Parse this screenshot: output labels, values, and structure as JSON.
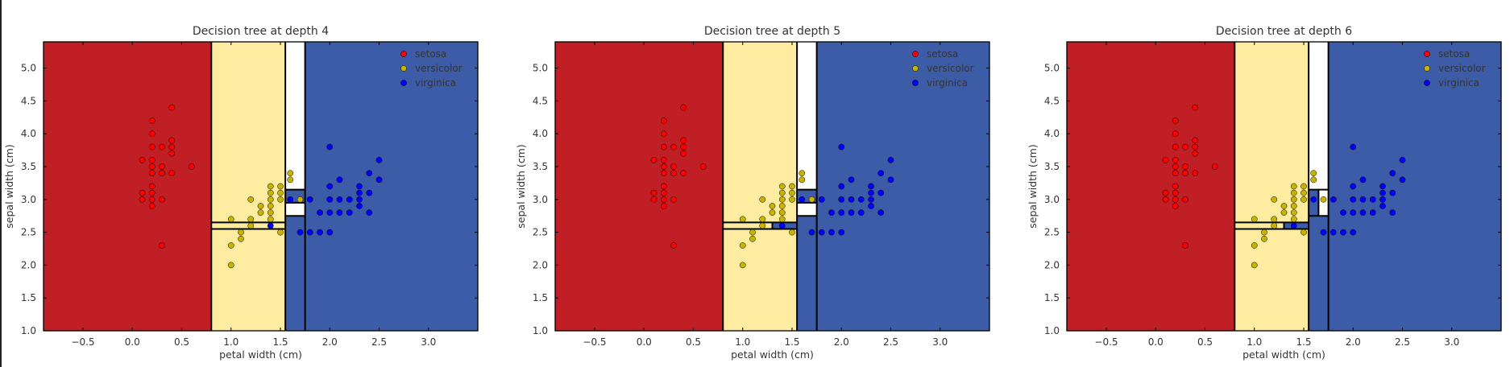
{
  "chart_data": [
    {
      "type": "scatter",
      "title": "Decision tree at depth 4",
      "xlabel": "petal width (cm)",
      "ylabel": "sepal width (cm)",
      "xlim": [
        -0.9,
        3.5
      ],
      "ylim": [
        1.0,
        5.4
      ],
      "xticks": [
        "−0.5",
        "0.0",
        "0.5",
        "1.0",
        "1.5",
        "2.0",
        "2.5",
        "3.0"
      ],
      "xtick_values": [
        -0.5,
        0.0,
        0.5,
        1.0,
        1.5,
        2.0,
        2.5,
        3.0
      ],
      "yticks": [
        "1.0",
        "1.5",
        "2.0",
        "2.5",
        "3.0",
        "3.5",
        "4.0",
        "4.5",
        "5.0"
      ],
      "ytick_values": [
        1.0,
        1.5,
        2.0,
        2.5,
        3.0,
        3.5,
        4.0,
        4.5,
        5.0
      ],
      "grid": false,
      "legend": "top-right",
      "regions": [
        {
          "class": "setosa",
          "x": [
            -0.9,
            0.8
          ],
          "y": [
            1.0,
            5.4
          ]
        },
        {
          "class": "versicolor",
          "x": [
            0.8,
            1.55
          ],
          "y": [
            1.0,
            5.4
          ]
        },
        {
          "class": "virginica",
          "x": [
            1.55,
            1.75
          ],
          "y": [
            1.0,
            2.75
          ]
        },
        {
          "class": "virginica",
          "x": [
            1.55,
            1.75
          ],
          "y": [
            2.95,
            3.15
          ]
        },
        {
          "class": "virginica",
          "x": [
            1.75,
            3.5
          ],
          "y": [
            1.0,
            5.4
          ]
        }
      ],
      "vlines": [
        {
          "x": 0.8,
          "y": [
            1.0,
            5.4
          ]
        },
        {
          "x": 1.55,
          "y": [
            1.0,
            5.4
          ]
        },
        {
          "x": 1.75,
          "y": [
            1.0,
            5.4
          ]
        }
      ],
      "hlines": [
        {
          "y": 2.55,
          "x": [
            0.8,
            1.55
          ]
        },
        {
          "y": 2.65,
          "x": [
            0.8,
            1.55
          ]
        },
        {
          "y": 2.75,
          "x": [
            1.55,
            1.75
          ]
        },
        {
          "y": 2.95,
          "x": [
            1.55,
            1.75
          ]
        },
        {
          "y": 3.15,
          "x": [
            1.55,
            1.75
          ]
        }
      ]
    },
    {
      "type": "scatter",
      "title": "Decision tree at depth 5",
      "xlabel": "petal width (cm)",
      "ylabel": "sepal width (cm)",
      "xlim": [
        -0.9,
        3.5
      ],
      "ylim": [
        1.0,
        5.4
      ],
      "xticks": [
        "−0.5",
        "0.0",
        "0.5",
        "1.0",
        "1.5",
        "2.0",
        "2.5",
        "3.0"
      ],
      "xtick_values": [
        -0.5,
        0.0,
        0.5,
        1.0,
        1.5,
        2.0,
        2.5,
        3.0
      ],
      "yticks": [
        "1.0",
        "1.5",
        "2.0",
        "2.5",
        "3.0",
        "3.5",
        "4.0",
        "4.5",
        "5.0"
      ],
      "ytick_values": [
        1.0,
        1.5,
        2.0,
        2.5,
        3.0,
        3.5,
        4.0,
        4.5,
        5.0
      ],
      "grid": false,
      "legend": "top-right",
      "regions": [
        {
          "class": "setosa",
          "x": [
            -0.9,
            0.8
          ],
          "y": [
            1.0,
            5.4
          ]
        },
        {
          "class": "versicolor",
          "x": [
            0.8,
            1.55
          ],
          "y": [
            1.0,
            5.4
          ]
        },
        {
          "class": "virginica",
          "x": [
            1.3,
            1.55
          ],
          "y": [
            2.55,
            2.65
          ]
        },
        {
          "class": "virginica",
          "x": [
            1.55,
            1.75
          ],
          "y": [
            1.0,
            2.75
          ]
        },
        {
          "class": "virginica",
          "x": [
            1.55,
            1.75
          ],
          "y": [
            2.95,
            3.15
          ]
        },
        {
          "class": "virginica",
          "x": [
            1.75,
            3.5
          ],
          "y": [
            1.0,
            5.4
          ]
        }
      ],
      "vlines": [
        {
          "x": 0.8,
          "y": [
            1.0,
            5.4
          ]
        },
        {
          "x": 1.55,
          "y": [
            1.0,
            5.4
          ]
        },
        {
          "x": 1.75,
          "y": [
            1.0,
            5.4
          ]
        },
        {
          "x": 1.3,
          "y": [
            2.55,
            2.65
          ]
        }
      ],
      "hlines": [
        {
          "y": 2.55,
          "x": [
            0.8,
            1.55
          ]
        },
        {
          "y": 2.65,
          "x": [
            0.8,
            1.55
          ]
        },
        {
          "y": 2.75,
          "x": [
            1.55,
            1.75
          ]
        },
        {
          "y": 2.95,
          "x": [
            1.55,
            1.75
          ]
        },
        {
          "y": 3.15,
          "x": [
            1.55,
            1.75
          ]
        }
      ]
    },
    {
      "type": "scatter",
      "title": "Decision tree at depth 6",
      "xlabel": "petal width (cm)",
      "ylabel": "sepal width (cm)",
      "xlim": [
        -0.9,
        3.5
      ],
      "ylim": [
        1.0,
        5.4
      ],
      "xticks": [
        "−0.5",
        "0.0",
        "0.5",
        "1.0",
        "1.5",
        "2.0",
        "2.5",
        "3.0"
      ],
      "xtick_values": [
        -0.5,
        0.0,
        0.5,
        1.0,
        1.5,
        2.0,
        2.5,
        3.0
      ],
      "yticks": [
        "1.0",
        "1.5",
        "2.0",
        "2.5",
        "3.0",
        "3.5",
        "4.0",
        "4.5",
        "5.0"
      ],
      "ytick_values": [
        1.0,
        1.5,
        2.0,
        2.5,
        3.0,
        3.5,
        4.0,
        4.5,
        5.0
      ],
      "grid": false,
      "legend": "top-right",
      "regions": [
        {
          "class": "setosa",
          "x": [
            -0.9,
            0.8
          ],
          "y": [
            1.0,
            5.4
          ]
        },
        {
          "class": "versicolor",
          "x": [
            0.8,
            1.55
          ],
          "y": [
            1.0,
            5.4
          ]
        },
        {
          "class": "virginica",
          "x": [
            1.3,
            1.55
          ],
          "y": [
            2.55,
            2.65
          ]
        },
        {
          "class": "virginica",
          "x": [
            1.55,
            1.75
          ],
          "y": [
            1.0,
            2.75
          ]
        },
        {
          "class": "virginica",
          "x": [
            1.55,
            1.65
          ],
          "y": [
            2.75,
            3.15
          ]
        },
        {
          "class": "virginica",
          "x": [
            1.75,
            3.5
          ],
          "y": [
            1.0,
            5.4
          ]
        }
      ],
      "vlines": [
        {
          "x": 0.8,
          "y": [
            1.0,
            5.4
          ]
        },
        {
          "x": 1.55,
          "y": [
            1.0,
            5.4
          ]
        },
        {
          "x": 1.75,
          "y": [
            1.0,
            5.4
          ]
        },
        {
          "x": 1.3,
          "y": [
            2.55,
            2.65
          ]
        },
        {
          "x": 1.65,
          "y": [
            2.75,
            3.15
          ]
        }
      ],
      "hlines": [
        {
          "y": 2.55,
          "x": [
            0.8,
            1.55
          ]
        },
        {
          "y": 2.65,
          "x": [
            0.8,
            1.55
          ]
        },
        {
          "y": 2.75,
          "x": [
            1.55,
            1.75
          ]
        },
        {
          "y": 3.15,
          "x": [
            1.55,
            1.75
          ]
        }
      ]
    }
  ],
  "series": [
    {
      "name": "setosa",
      "points": [
        [
          0.1,
          3.6
        ],
        [
          0.1,
          3.1
        ],
        [
          0.1,
          3.0
        ],
        [
          0.2,
          4.2
        ],
        [
          0.2,
          4.0
        ],
        [
          0.2,
          3.8
        ],
        [
          0.2,
          3.6
        ],
        [
          0.2,
          3.5
        ],
        [
          0.2,
          3.4
        ],
        [
          0.2,
          3.2
        ],
        [
          0.2,
          3.1
        ],
        [
          0.2,
          3.0
        ],
        [
          0.2,
          2.9
        ],
        [
          0.3,
          3.8
        ],
        [
          0.3,
          3.5
        ],
        [
          0.3,
          3.4
        ],
        [
          0.3,
          3.0
        ],
        [
          0.3,
          2.3
        ],
        [
          0.4,
          4.4
        ],
        [
          0.4,
          3.9
        ],
        [
          0.4,
          3.8
        ],
        [
          0.4,
          3.7
        ],
        [
          0.4,
          3.4
        ],
        [
          0.6,
          3.5
        ]
      ]
    },
    {
      "name": "versicolor",
      "points": [
        [
          1.0,
          2.7
        ],
        [
          1.0,
          2.3
        ],
        [
          1.0,
          2.0
        ],
        [
          1.1,
          2.5
        ],
        [
          1.1,
          2.4
        ],
        [
          1.2,
          3.0
        ],
        [
          1.2,
          2.7
        ],
        [
          1.2,
          2.6
        ],
        [
          1.3,
          2.9
        ],
        [
          1.3,
          2.8
        ],
        [
          1.4,
          3.2
        ],
        [
          1.4,
          3.1
        ],
        [
          1.4,
          3.0
        ],
        [
          1.4,
          2.9
        ],
        [
          1.4,
          2.8
        ],
        [
          1.4,
          2.7
        ],
        [
          1.5,
          3.2
        ],
        [
          1.5,
          3.1
        ],
        [
          1.5,
          3.0
        ],
        [
          1.5,
          2.5
        ],
        [
          1.6,
          3.4
        ],
        [
          1.6,
          3.3
        ],
        [
          1.7,
          3.0
        ]
      ]
    },
    {
      "name": "virginica",
      "points": [
        [
          1.4,
          2.6
        ],
        [
          1.6,
          3.0
        ],
        [
          1.7,
          2.5
        ],
        [
          1.8,
          3.0
        ],
        [
          1.8,
          2.5
        ],
        [
          1.9,
          2.8
        ],
        [
          1.9,
          2.5
        ],
        [
          2.0,
          3.8
        ],
        [
          2.0,
          3.2
        ],
        [
          2.0,
          3.0
        ],
        [
          2.0,
          2.8
        ],
        [
          2.0,
          2.5
        ],
        [
          2.1,
          3.3
        ],
        [
          2.1,
          3.0
        ],
        [
          2.1,
          2.8
        ],
        [
          2.2,
          3.0
        ],
        [
          2.2,
          2.8
        ],
        [
          2.3,
          3.2
        ],
        [
          2.3,
          3.1
        ],
        [
          2.3,
          3.0
        ],
        [
          2.3,
          2.9
        ],
        [
          2.4,
          3.4
        ],
        [
          2.4,
          3.1
        ],
        [
          2.4,
          2.8
        ],
        [
          2.5,
          3.6
        ],
        [
          2.5,
          3.3
        ]
      ]
    }
  ],
  "legend_entries": [
    "setosa",
    "versicolor",
    "virginica"
  ],
  "colors": {
    "setosa_region": "#c11f26",
    "versicolor_region": "#feeca0",
    "virginica_region": "#3c5ca8",
    "setosa_point": "#ff0000",
    "versicolor_point": "#c8b400",
    "virginica_point": "#0000ff",
    "boundary": "#000000",
    "text": "#333333"
  }
}
